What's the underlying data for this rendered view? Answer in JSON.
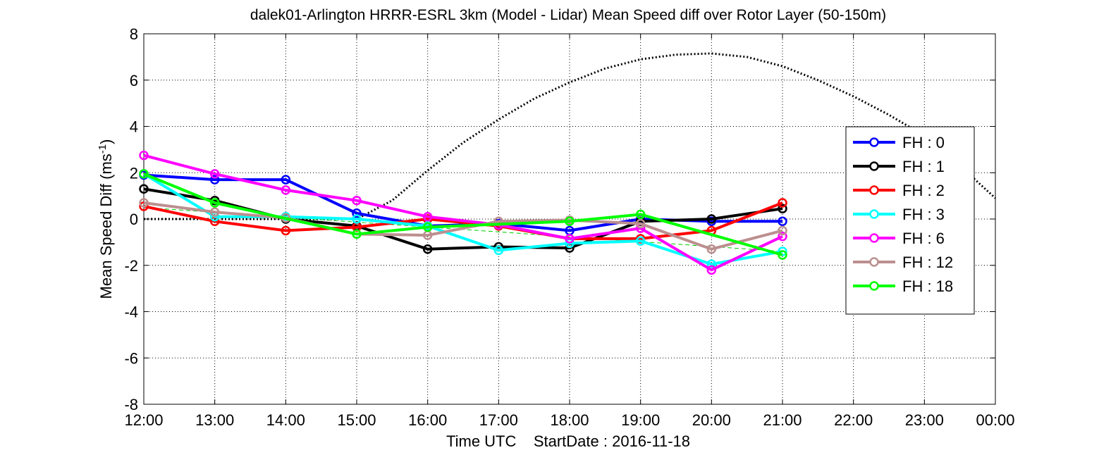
{
  "chart_data": {
    "type": "line",
    "title": "dalek01-Arlington HRRR-ESRL 3km (Model - Lidar) Mean Speed diff over Rotor Layer (50-150m)",
    "xlabel": "Time UTC    StartDate : 2016-11-18",
    "ylabel": "Mean Speed Diff (ms",
    "ylabel_sup": "-1",
    "ylabel_end": ")",
    "x_ticks": [
      "12:00",
      "13:00",
      "14:00",
      "15:00",
      "16:00",
      "17:00",
      "18:00",
      "19:00",
      "20:00",
      "21:00",
      "22:00",
      "23:00",
      "00:00"
    ],
    "xlim": [
      "12:00",
      "00:00"
    ],
    "ylim": [
      -8,
      8
    ],
    "y_ticks": [
      -8,
      -6,
      -4,
      -2,
      0,
      2,
      4,
      6,
      8
    ],
    "grid": true,
    "legend_position": "right",
    "x": [
      "12:00",
      "13:00",
      "14:00",
      "15:00",
      "16:00",
      "17:00",
      "18:00",
      "19:00",
      "20:00",
      "21:00"
    ],
    "series": [
      {
        "name": "FH : 0",
        "color": "#0000ff",
        "values": [
          1.9,
          1.7,
          1.7,
          0.25,
          -0.3,
          -0.2,
          -0.5,
          0.0,
          -0.1,
          -0.1
        ]
      },
      {
        "name": "FH : 1",
        "color": "#000000",
        "values": [
          1.3,
          0.8,
          0.0,
          -0.3,
          -1.3,
          -1.2,
          -1.25,
          -0.1,
          0.0,
          0.45
        ]
      },
      {
        "name": "FH : 2",
        "color": "#ff0000",
        "values": [
          0.55,
          -0.1,
          -0.5,
          -0.35,
          0.0,
          -0.3,
          -0.85,
          -0.85,
          -0.5,
          0.7
        ]
      },
      {
        "name": "FH : 3",
        "color": "#00ffff",
        "values": [
          1.95,
          0.1,
          0.1,
          0.0,
          -0.3,
          -1.35,
          -1.05,
          -0.95,
          -1.95,
          -1.4
        ]
      },
      {
        "name": "FH : 6",
        "color": "#ff00ff",
        "values": [
          2.75,
          1.95,
          1.25,
          0.8,
          0.1,
          -0.25,
          -0.85,
          -0.4,
          -2.2,
          -0.75
        ]
      },
      {
        "name": "FH : 12",
        "color": "#bc8f8f",
        "values": [
          0.7,
          0.3,
          0.05,
          -0.65,
          -0.7,
          -0.1,
          -0.05,
          -0.2,
          -1.3,
          -0.5
        ]
      },
      {
        "name": "FH : 18",
        "color": "#00ff00",
        "values": [
          1.95,
          0.7,
          null,
          -0.65,
          -0.35,
          null,
          -0.1,
          0.2,
          null,
          -1.55
        ]
      }
    ],
    "reference_series": [
      {
        "style": "dotted",
        "color": "#000000",
        "x": [
          "12:00",
          "12:30",
          "13:00",
          "13:30",
          "14:00",
          "14:30",
          "15:00",
          "15:30",
          "16:00",
          "16:30",
          "17:00",
          "17:30",
          "18:00",
          "18:30",
          "19:00",
          "19:30",
          "20:00",
          "20:30",
          "21:00",
          "21:30",
          "22:00",
          "22:30",
          "23:00",
          "23:30",
          "00:00"
        ],
        "values": [
          0,
          0,
          0,
          0,
          0,
          0,
          0,
          0.8,
          2.1,
          3.3,
          4.3,
          5.2,
          5.9,
          6.5,
          6.9,
          7.1,
          7.15,
          7.0,
          6.6,
          6.0,
          5.3,
          4.5,
          3.6,
          2.3,
          0.9
        ]
      },
      {
        "style": "dashed",
        "color": "#00cc00",
        "x": [
          "12:00",
          "21:00"
        ],
        "values": [
          0.5,
          -1.4
        ]
      }
    ]
  }
}
